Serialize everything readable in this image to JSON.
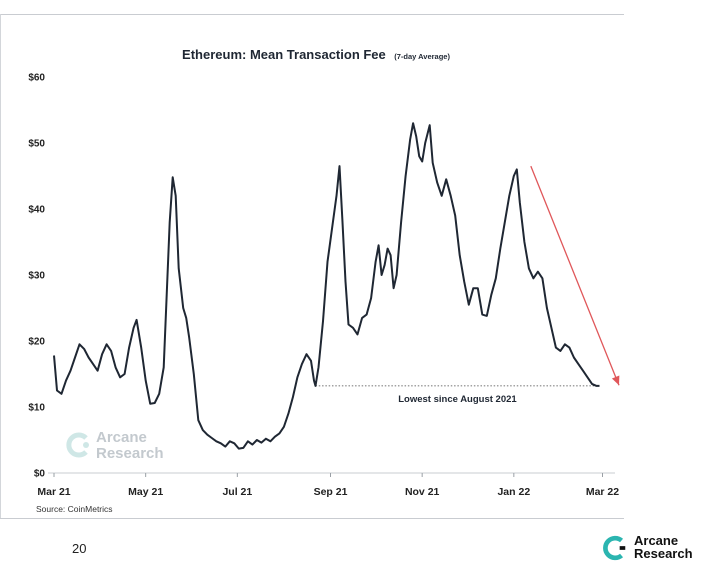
{
  "chart_data": {
    "type": "line",
    "title": "Ethereum: Mean Transaction Fee",
    "subtitle": "(7-day Average)",
    "x_tick_labels": [
      "Mar 21",
      "May 21",
      "Jul 21",
      "Sep 21",
      "Nov 21",
      "Jan 22",
      "Mar 22"
    ],
    "y_tick_labels": [
      "$0",
      "$10",
      "$20",
      "$30",
      "$40",
      "$50",
      "$60"
    ],
    "ylim": [
      0,
      60
    ],
    "xlim": [
      "2021-03-01",
      "2022-03-04"
    ],
    "grid": false,
    "series": [
      {
        "color": "#1f2733",
        "points": [
          [
            "2021-03-01",
            17.8
          ],
          [
            "2021-03-03",
            12.5
          ],
          [
            "2021-03-06",
            12.0
          ],
          [
            "2021-03-09",
            14.0
          ],
          [
            "2021-03-12",
            15.5
          ],
          [
            "2021-03-15",
            17.5
          ],
          [
            "2021-03-18",
            19.5
          ],
          [
            "2021-03-21",
            18.8
          ],
          [
            "2021-03-24",
            17.5
          ],
          [
            "2021-03-27",
            16.5
          ],
          [
            "2021-03-30",
            15.5
          ],
          [
            "2021-04-02",
            18.0
          ],
          [
            "2021-04-05",
            19.5
          ],
          [
            "2021-04-08",
            18.5
          ],
          [
            "2021-04-11",
            16.0
          ],
          [
            "2021-04-14",
            14.5
          ],
          [
            "2021-04-17",
            15.0
          ],
          [
            "2021-04-20",
            19.0
          ],
          [
            "2021-04-23",
            22.0
          ],
          [
            "2021-04-25",
            23.2
          ],
          [
            "2021-04-28",
            19.0
          ],
          [
            "2021-05-01",
            14.0
          ],
          [
            "2021-05-04",
            10.5
          ],
          [
            "2021-05-07",
            10.6
          ],
          [
            "2021-05-10",
            12.0
          ],
          [
            "2021-05-13",
            16.0
          ],
          [
            "2021-05-15",
            27.0
          ],
          [
            "2021-05-17",
            38.0
          ],
          [
            "2021-05-19",
            44.8
          ],
          [
            "2021-05-21",
            42.0
          ],
          [
            "2021-05-23",
            31.0
          ],
          [
            "2021-05-26",
            25.0
          ],
          [
            "2021-05-28",
            23.5
          ],
          [
            "2021-05-30",
            20.5
          ],
          [
            "2021-06-02",
            15.0
          ],
          [
            "2021-06-05",
            8.0
          ],
          [
            "2021-06-08",
            6.5
          ],
          [
            "2021-06-11",
            5.8
          ],
          [
            "2021-06-14",
            5.3
          ],
          [
            "2021-06-17",
            4.8
          ],
          [
            "2021-06-20",
            4.5
          ],
          [
            "2021-06-23",
            4.0
          ],
          [
            "2021-06-26",
            4.8
          ],
          [
            "2021-06-29",
            4.5
          ],
          [
            "2021-07-02",
            3.7
          ],
          [
            "2021-07-05",
            3.8
          ],
          [
            "2021-07-08",
            4.8
          ],
          [
            "2021-07-11",
            4.3
          ],
          [
            "2021-07-14",
            5.0
          ],
          [
            "2021-07-17",
            4.6
          ],
          [
            "2021-07-20",
            5.2
          ],
          [
            "2021-07-23",
            4.8
          ],
          [
            "2021-07-26",
            5.5
          ],
          [
            "2021-07-29",
            6.0
          ],
          [
            "2021-08-01",
            7.0
          ],
          [
            "2021-08-04",
            9.0
          ],
          [
            "2021-08-07",
            11.5
          ],
          [
            "2021-08-10",
            14.5
          ],
          [
            "2021-08-13",
            16.5
          ],
          [
            "2021-08-16",
            18.0
          ],
          [
            "2021-08-19",
            17.0
          ],
          [
            "2021-08-21",
            14.0
          ],
          [
            "2021-08-22",
            13.2
          ],
          [
            "2021-08-24",
            16.0
          ],
          [
            "2021-08-27",
            23.0
          ],
          [
            "2021-08-30",
            32.0
          ],
          [
            "2021-09-02",
            37.0
          ],
          [
            "2021-09-05",
            42.0
          ],
          [
            "2021-09-07",
            46.5
          ],
          [
            "2021-09-09",
            38.0
          ],
          [
            "2021-09-11",
            29.0
          ],
          [
            "2021-09-13",
            22.5
          ],
          [
            "2021-09-16",
            22.0
          ],
          [
            "2021-09-19",
            21.0
          ],
          [
            "2021-09-22",
            23.5
          ],
          [
            "2021-09-25",
            24.0
          ],
          [
            "2021-09-28",
            26.5
          ],
          [
            "2021-10-01",
            32.0
          ],
          [
            "2021-10-03",
            34.5
          ],
          [
            "2021-10-05",
            30.0
          ],
          [
            "2021-10-07",
            31.5
          ],
          [
            "2021-10-09",
            34.0
          ],
          [
            "2021-10-11",
            33.0
          ],
          [
            "2021-10-13",
            28.0
          ],
          [
            "2021-10-15",
            30.0
          ],
          [
            "2021-10-18",
            38.0
          ],
          [
            "2021-10-21",
            45.0
          ],
          [
            "2021-10-24",
            50.5
          ],
          [
            "2021-10-26",
            53.0
          ],
          [
            "2021-10-28",
            51.0
          ],
          [
            "2021-10-30",
            48.0
          ],
          [
            "2021-11-01",
            47.2
          ],
          [
            "2021-11-03",
            50.0
          ],
          [
            "2021-11-06",
            52.7
          ],
          [
            "2021-11-08",
            47.0
          ],
          [
            "2021-11-11",
            44.0
          ],
          [
            "2021-11-14",
            42.0
          ],
          [
            "2021-11-17",
            44.5
          ],
          [
            "2021-11-20",
            42.0
          ],
          [
            "2021-11-23",
            39.0
          ],
          [
            "2021-11-26",
            33.0
          ],
          [
            "2021-11-29",
            29.0
          ],
          [
            "2021-12-02",
            25.5
          ],
          [
            "2021-12-05",
            28.0
          ],
          [
            "2021-12-08",
            28.0
          ],
          [
            "2021-12-11",
            24.0
          ],
          [
            "2021-12-14",
            23.8
          ],
          [
            "2021-12-17",
            27.0
          ],
          [
            "2021-12-20",
            29.5
          ],
          [
            "2021-12-23",
            34.0
          ],
          [
            "2021-12-26",
            38.0
          ],
          [
            "2021-12-29",
            42.0
          ],
          [
            "2022-01-01",
            45.0
          ],
          [
            "2022-01-03",
            46.0
          ],
          [
            "2022-01-05",
            41.0
          ],
          [
            "2022-01-08",
            35.0
          ],
          [
            "2022-01-11",
            31.0
          ],
          [
            "2022-01-14",
            29.5
          ],
          [
            "2022-01-17",
            30.5
          ],
          [
            "2022-01-20",
            29.5
          ],
          [
            "2022-01-23",
            25.0
          ],
          [
            "2022-01-26",
            22.0
          ],
          [
            "2022-01-29",
            19.0
          ],
          [
            "2022-02-01",
            18.5
          ],
          [
            "2022-02-04",
            19.5
          ],
          [
            "2022-02-07",
            19.0
          ],
          [
            "2022-02-10",
            17.5
          ],
          [
            "2022-02-13",
            16.5
          ],
          [
            "2022-02-16",
            15.5
          ],
          [
            "2022-02-19",
            14.5
          ],
          [
            "2022-02-22",
            13.5
          ],
          [
            "2022-02-25",
            13.2
          ],
          [
            "2022-02-27",
            13.2
          ]
        ]
      }
    ],
    "annotations": {
      "reference_line": {
        "y": 13.2,
        "x_start": "2021-08-22",
        "x_end": "2022-02-27",
        "style": "dotted",
        "label": "Lowest since August 2021"
      },
      "trend_arrow": {
        "color": "#e0575a",
        "from": [
          "2022-01-03",
          46.5
        ],
        "to": [
          "2022-03-04",
          14.5
        ]
      }
    }
  },
  "watermark": {
    "text_line1": "Arcane",
    "text_line2": "Research",
    "color": "#b9c0c6"
  },
  "source": "Source: CoinMetrics",
  "page_number": "20",
  "footer_logo": {
    "text_line1": "Arcane",
    "text_line2": "Research",
    "accent": "#2bb5b0"
  }
}
